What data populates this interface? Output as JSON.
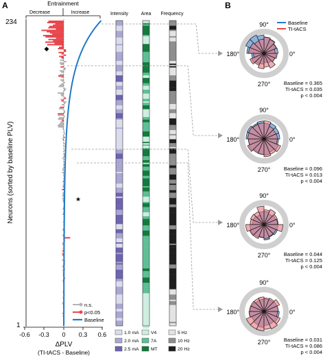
{
  "panel_a": {
    "label": "A",
    "header": "Entrainment",
    "decrease_label": "Decrease",
    "increase_label": "Increase",
    "ylabel": "Neurons (sorted by baseline PLV)",
    "y_top": "234",
    "y_bottom": "1",
    "xlabel": "ΔPLV",
    "xlabel_sub": "(TI-tACS - Baseline)",
    "xticks": [
      "-0.6",
      "-0.3",
      "0",
      "0.3",
      "0.6"
    ],
    "legend": {
      "ns": "n.s.",
      "sig": "p<0.05",
      "baseline": "Baseline"
    },
    "markers": {
      "diamond": "◆",
      "star": "★"
    },
    "colors": {
      "ns": "#b3b3b3",
      "sig": "#e8464c",
      "baseline": "#1f78c8"
    }
  },
  "columns": {
    "intensity": {
      "title": "Intensity",
      "legend": [
        "1.0 mA",
        "2.0 mA",
        "2.5 mA"
      ],
      "colors": [
        "#dcdcee",
        "#a9a7d3",
        "#6e63b0"
      ]
    },
    "area": {
      "title": "Area",
      "legend": [
        "V4",
        "7A",
        "MT"
      ],
      "colors": [
        "#cdeee0",
        "#5fbe95",
        "#127a3d"
      ]
    },
    "frequency": {
      "title": "Frequency",
      "legend": [
        "5 Hz",
        "10 Hz",
        "20 Hz"
      ],
      "colors": [
        "#e3e3e3",
        "#8e8e8e",
        "#1e1e1e"
      ]
    }
  },
  "panel_b": {
    "label": "B",
    "legend": {
      "baseline": "Baseline",
      "ti": "TI-tACS"
    },
    "angle_labels": {
      "top": "90°",
      "left": "180°",
      "right": "0°",
      "bottom": "270°"
    },
    "colors": {
      "baseline": "#6f9ed6",
      "ti": "#e8757c"
    },
    "plots": [
      {
        "baseline": "Baseline = 0.365",
        "ti": "TI-tACS = 0.035",
        "p": "p < 0.004"
      },
      {
        "baseline": "Baseline = 0.096",
        "ti": "TI-tACS = 0.013",
        "p": "p < 0.004"
      },
      {
        "baseline": "Baseline = 0.044",
        "ti": "TI-tACS = 0.125",
        "p": "p < 0.004"
      },
      {
        "baseline": "Baseline = 0.031",
        "ti": "TI-tACS = 0.086",
        "p": "p < 0.004"
      }
    ]
  }
}
